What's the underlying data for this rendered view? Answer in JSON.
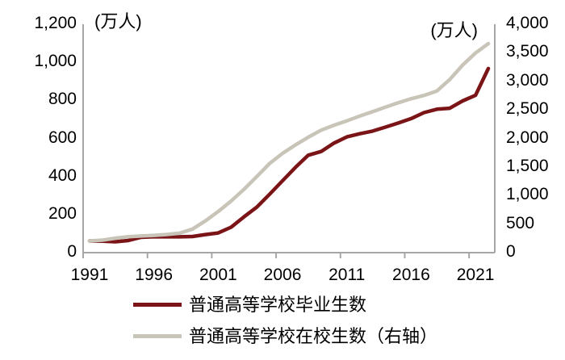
{
  "chart_data": {
    "type": "line",
    "title": "",
    "xlabel": "",
    "grid": false,
    "legend_position": "bottom",
    "background": "#FFFFFF",
    "axis_color": "#A6A6A6",
    "x": [
      1991,
      1992,
      1993,
      1994,
      1995,
      1996,
      1997,
      1998,
      1999,
      2000,
      2001,
      2002,
      2003,
      2004,
      2005,
      2006,
      2007,
      2008,
      2009,
      2010,
      2011,
      2012,
      2013,
      2014,
      2015,
      2016,
      2017,
      2018,
      2019,
      2020,
      2021,
      2022
    ],
    "x_tick_years": [
      1991,
      1996,
      2001,
      2006,
      2011,
      2016,
      2021
    ],
    "left_axis": {
      "unit": "(万人)",
      "min": 0,
      "max": 1200,
      "step": 200,
      "tick_labels": [
        "1,200",
        "1,000",
        "800",
        "600",
        "400",
        "200",
        "0"
      ]
    },
    "right_axis": {
      "unit": "(万人)",
      "min": 0,
      "max": 4000,
      "step": 500,
      "tick_labels": [
        "4,000",
        "3,500",
        "3,000",
        "2,500",
        "2,000",
        "1,500",
        "1,000",
        "500",
        "0"
      ]
    },
    "series": [
      {
        "name": "普通高等学校毕业生数",
        "axis": "left",
        "color": "#7B1417",
        "values": [
          61.4,
          60.4,
          57.1,
          63.7,
          80.5,
          83.9,
          82.9,
          83.0,
          84.8,
          95.0,
          103.6,
          133.7,
          187.7,
          239.1,
          306.8,
          377.5,
          447.8,
          512.0,
          531.1,
          575.4,
          608.2,
          624.7,
          638.7,
          659.4,
          680.9,
          704.2,
          735.8,
          753.3,
          758.5,
          797.2,
          826.5,
          967.3
        ]
      },
      {
        "name": "普通高等学校在校生数（右轴）",
        "axis": "right",
        "color": "#C8C5B8",
        "values": [
          204.4,
          218.4,
          253.6,
          279.9,
          290.6,
          302.1,
          317.4,
          340.9,
          413.4,
          556.1,
          719.1,
          903.4,
          1108.6,
          1333.5,
          1561.8,
          1738.8,
          1884.9,
          2021.0,
          2144.7,
          2231.8,
          2308.5,
          2391.3,
          2468.1,
          2547.7,
          2625.3,
          2695.8,
          2753.6,
          2831.0,
          3031.5,
          3285.3,
          3496.1,
          3659.4
        ]
      }
    ]
  }
}
